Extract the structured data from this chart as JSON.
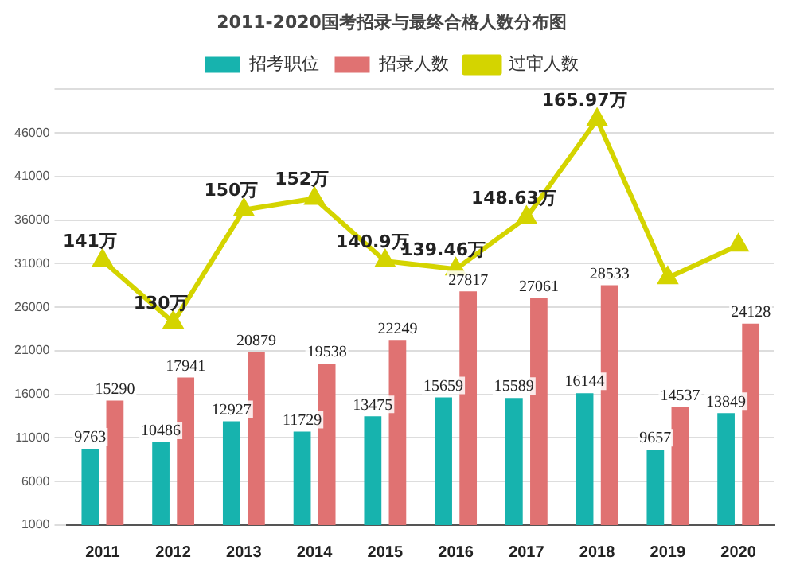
{
  "chart_data": {
    "type": "bar",
    "title": "2011-2020国考招录与最终合格人数分布图",
    "categories": [
      "2011",
      "2012",
      "2013",
      "2014",
      "2015",
      "2016",
      "2017",
      "2018",
      "2019",
      "2020"
    ],
    "series": [
      {
        "name": "招考职位",
        "color": "#17b3ae",
        "values": [
          9763,
          10486,
          12927,
          11729,
          13475,
          15659,
          15589,
          16144,
          9657,
          13849
        ]
      },
      {
        "name": "招录人数",
        "color": "#e07272",
        "values": [
          15290,
          17941,
          20879,
          19538,
          22249,
          27817,
          27061,
          28533,
          14537,
          24128
        ]
      },
      {
        "name": "过审人数",
        "type": "line",
        "axis": "y2",
        "color": "#d4d400",
        "marker": "triangle",
        "values": [
          141,
          130,
          150,
          152,
          140.9,
          139.46,
          148.63,
          165.97,
          137.93,
          143.7
        ],
        "value_labels": [
          "141万",
          "130万",
          "150万",
          "152万",
          "140.9万",
          "139.46万",
          "148.63万",
          "165.97万",
          null,
          null
        ]
      }
    ],
    "ylim": [
      1000,
      51000
    ],
    "yticks": [
      1000,
      6000,
      11000,
      16000,
      21000,
      26000,
      31000,
      36000,
      41000,
      46000,
      {
        "value": 51000,
        "label": null
      }
    ],
    "grid": "y",
    "legend": "top",
    "data_labels": true
  }
}
